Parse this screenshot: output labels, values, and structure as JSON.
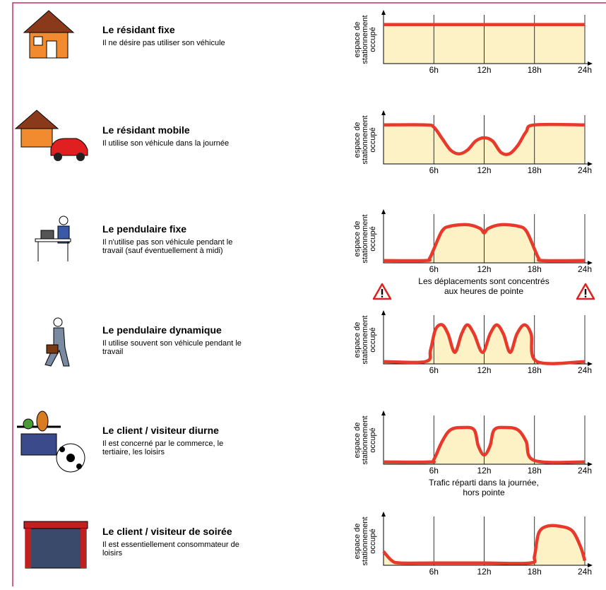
{
  "chart_data": [
    {
      "type": "line",
      "title": "Le résidant fixe",
      "subtitle": "Il ne désire pas utiliser son véhicule",
      "ylabel": [
        "espace de",
        "stationnement",
        "occupé"
      ],
      "x": [
        0,
        24
      ],
      "values": [
        0.85,
        0.85
      ],
      "color": "#e8392a",
      "xlim": [
        0,
        24
      ],
      "ylim": [
        0,
        1
      ],
      "xticks": [
        {
          "value": 6,
          "label": "6h"
        },
        {
          "value": 12,
          "label": "12h"
        },
        {
          "value": 18,
          "label": "18h"
        },
        {
          "value": 24,
          "label": "24h"
        }
      ],
      "grid": true
    },
    {
      "type": "line",
      "title": "Le résidant mobile",
      "subtitle": "Il utilise son véhicule dans la journée",
      "ylabel": [
        "espace de",
        "stationnement",
        "occupé"
      ],
      "x": [
        0,
        5,
        6,
        7,
        8,
        9,
        10,
        11,
        12,
        13,
        14,
        15,
        16,
        17,
        18,
        24
      ],
      "values": [
        0.85,
        0.85,
        0.8,
        0.55,
        0.3,
        0.22,
        0.3,
        0.5,
        0.57,
        0.5,
        0.25,
        0.22,
        0.4,
        0.7,
        0.85,
        0.85
      ],
      "color": "#e8392a",
      "xlim": [
        0,
        24
      ],
      "ylim": [
        0,
        1
      ],
      "xticks": [
        {
          "value": 6,
          "label": "6h"
        },
        {
          "value": 12,
          "label": "12h"
        },
        {
          "value": 18,
          "label": "18h"
        },
        {
          "value": 24,
          "label": "24h"
        }
      ],
      "grid": true
    },
    {
      "type": "line",
      "title": "Le pendulaire fixe",
      "subtitle": "Il n'utilise pas son véhicule pendant le travail (sauf éventuellement à midi)",
      "ylabel": [
        "espace de",
        "stationnement",
        "occupé"
      ],
      "x": [
        0,
        5,
        5.5,
        6,
        7,
        8,
        10,
        11.5,
        12,
        12.5,
        14,
        16,
        17,
        18,
        18.5,
        19,
        24
      ],
      "values": [
        0.05,
        0.05,
        0.1,
        0.3,
        0.7,
        0.8,
        0.83,
        0.75,
        0.65,
        0.75,
        0.83,
        0.8,
        0.7,
        0.3,
        0.1,
        0.05,
        0.05
      ],
      "color": "#e8392a",
      "xlim": [
        0,
        24
      ],
      "ylim": [
        0,
        1
      ],
      "xticks": [
        {
          "value": 6,
          "label": "6h"
        },
        {
          "value": 12,
          "label": "12h"
        },
        {
          "value": 18,
          "label": "18h"
        },
        {
          "value": 24,
          "label": "24h"
        }
      ],
      "grid": true,
      "annotation": [
        "Les déplacements sont concentrés",
        "aux heures de pointe"
      ]
    },
    {
      "type": "line",
      "title": "Le pendulaire dynamique",
      "subtitle": "Il utilise souvent son véhicule pendant le travail",
      "ylabel": [
        "espace de",
        "stationnement",
        "occupé"
      ],
      "x": [
        0,
        5,
        5.6,
        6.2,
        7,
        7.7,
        8.5,
        9.3,
        10,
        10.8,
        11.8,
        12.7,
        13.5,
        14.3,
        15.1,
        15.9,
        16.8,
        17.6,
        18.3,
        24
      ],
      "values": [
        0.05,
        0.05,
        0.3,
        0.75,
        0.85,
        0.65,
        0.25,
        0.65,
        0.85,
        0.65,
        0.25,
        0.65,
        0.85,
        0.65,
        0.25,
        0.65,
        0.85,
        0.65,
        0.05,
        0.05
      ],
      "color": "#e8392a",
      "xlim": [
        0,
        24
      ],
      "ylim": [
        0,
        1
      ],
      "xticks": [
        {
          "value": 6,
          "label": "6h"
        },
        {
          "value": 12,
          "label": "12h"
        },
        {
          "value": 18,
          "label": "18h"
        },
        {
          "value": 24,
          "label": "24h"
        }
      ],
      "grid": true
    },
    {
      "type": "line",
      "title": "Le client / visiteur diurne",
      "subtitle": "Il est concerné par le commerce, le tertiaire, les loisirs",
      "ylabel": [
        "espace de",
        "stationnement",
        "occupé"
      ],
      "x": [
        0,
        5.5,
        6,
        7,
        8,
        9.5,
        10.8,
        11.3,
        12,
        12.7,
        13.2,
        14.5,
        16,
        17,
        18,
        24
      ],
      "values": [
        0.05,
        0.05,
        0.1,
        0.5,
        0.75,
        0.8,
        0.75,
        0.4,
        0.2,
        0.4,
        0.75,
        0.8,
        0.75,
        0.5,
        0.08,
        0.05
      ],
      "color": "#e8392a",
      "xlim": [
        0,
        24
      ],
      "ylim": [
        0,
        1
      ],
      "xticks": [
        {
          "value": 6,
          "label": "6h"
        },
        {
          "value": 12,
          "label": "12h"
        },
        {
          "value": 18,
          "label": "18h"
        },
        {
          "value": 24,
          "label": "24h"
        }
      ],
      "grid": true,
      "annotation": [
        "Trafic réparti dans la journée,",
        "hors pointe"
      ]
    },
    {
      "type": "line",
      "title": "Le client / visiteur de soirée",
      "subtitle": "Il est essentiellement consommateur de loisirs",
      "ylabel": [
        "espace de",
        "stationnement",
        "occupé"
      ],
      "x": [
        0,
        1,
        2,
        6,
        12,
        17.5,
        18,
        18.5,
        19.5,
        21,
        22.5,
        23.5,
        24
      ],
      "values": [
        0.3,
        0.1,
        0.05,
        0.05,
        0.05,
        0.05,
        0.2,
        0.7,
        0.85,
        0.85,
        0.75,
        0.4,
        0.1
      ],
      "color": "#e8392a",
      "xlim": [
        0,
        24
      ],
      "ylim": [
        0,
        1
      ],
      "xticks": [
        {
          "value": 6,
          "label": "6h"
        },
        {
          "value": 12,
          "label": "12h"
        },
        {
          "value": 18,
          "label": "18h"
        },
        {
          "value": 24,
          "label": "24h"
        }
      ],
      "grid": true
    }
  ]
}
